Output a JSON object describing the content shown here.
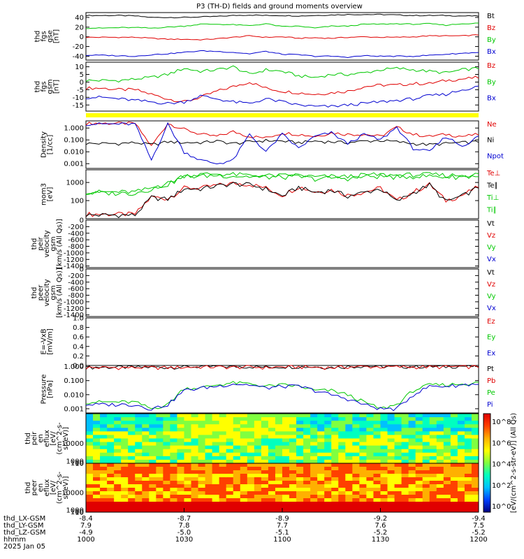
{
  "title": "P3 (TH-D) fields and ground moments overview",
  "colors": {
    "black": "#000000",
    "red": "#e00000",
    "green": "#00c800",
    "blue": "#0000d0",
    "yellow": "#ffff00"
  },
  "chart_data": [
    {
      "type": "line",
      "ylabel": [
        "thd",
        "fgs",
        "gse",
        "[nT]"
      ],
      "yticks": [
        "40",
        "20",
        "0",
        "-20",
        "-40"
      ],
      "ylim": [
        -48,
        50
      ],
      "series": [
        {
          "name": "Bt",
          "color": "red_black",
          "values": [
            44,
            44,
            44,
            43,
            40,
            40,
            40,
            41,
            42,
            44,
            45,
            44,
            44,
            43,
            44,
            45,
            46,
            46,
            46,
            45,
            44,
            44,
            44,
            43,
            43
          ]
        },
        {
          "name": "Bz",
          "values": [
            -1,
            -1,
            -1,
            -1,
            -3,
            -5,
            -5,
            -6,
            -4,
            -1,
            2,
            -1,
            0,
            -3,
            -2,
            -3,
            -1,
            0,
            -1,
            -1,
            0,
            2,
            2,
            2,
            4
          ]
        },
        {
          "name": "By",
          "values": [
            18,
            18,
            19,
            19,
            18,
            20,
            22,
            26,
            26,
            25,
            23,
            27,
            21,
            22,
            18,
            22,
            22,
            26,
            26,
            27,
            26,
            27,
            24,
            27,
            28
          ]
        },
        {
          "name": "Bx",
          "values": [
            -38,
            -38,
            -39,
            -40,
            -37,
            -35,
            -32,
            -29,
            -30,
            -32,
            -35,
            -30,
            -36,
            -37,
            -40,
            -40,
            -42,
            -39,
            -40,
            -40,
            -40,
            -38,
            -36,
            -34,
            -32
          ]
        }
      ]
    },
    {
      "type": "line",
      "ylabel": [
        "thd",
        "fgs",
        "gsm",
        "[nT]"
      ],
      "yticks": [
        "10",
        "5",
        "0",
        "-5",
        "-10",
        "-15"
      ],
      "ylim": [
        -19,
        13
      ],
      "series": [
        {
          "name": "Bz",
          "values": [
            -4,
            -4,
            -5,
            -5,
            -8,
            -11,
            -13,
            -10,
            -6,
            -3,
            0,
            -4,
            -6,
            -7,
            -8,
            -7,
            -6,
            -3,
            -2,
            -2,
            -1,
            -1,
            1,
            2,
            3
          ]
        },
        {
          "name": "By",
          "values": [
            1,
            1,
            1,
            2,
            3,
            5,
            9,
            7,
            8,
            10,
            5,
            8,
            7,
            4,
            3,
            5,
            5,
            6,
            8,
            9,
            8,
            7,
            6,
            8,
            9
          ]
        },
        {
          "name": "Bx",
          "values": [
            -10,
            -10,
            -11,
            -12,
            -13,
            -14,
            -13,
            -9,
            -11,
            -13,
            -14,
            -11,
            -13,
            -15,
            -16,
            -16,
            -15,
            -14,
            -13,
            -12,
            -11,
            -9,
            -8,
            -5,
            -3
          ]
        }
      ]
    },
    {
      "type": "line",
      "ylabel": [
        "Density",
        "[1/cc]"
      ],
      "yticks": [
        "1.000",
        "0.100",
        "0.010",
        "0.001"
      ],
      "log": true,
      "ylim": [
        0.0004,
        4
      ],
      "series": [
        {
          "name": "Ne",
          "values": [
            2.5,
            2.5,
            2.5,
            2.5,
            0.03,
            2.5,
            0.8,
            0.3,
            0.2,
            0.5,
            0.2,
            0.15,
            0.4,
            0.3,
            0.2,
            0.4,
            0.3,
            0.3,
            0.2,
            1.2,
            0.3,
            0.2,
            0.3,
            0.2,
            0.3
          ]
        },
        {
          "name": "Ni",
          "values": [
            0.05,
            0.05,
            0.05,
            0.06,
            0.04,
            0.07,
            0.06,
            0.06,
            0.08,
            0.05,
            0.07,
            0.09,
            0.08,
            0.06,
            0.08,
            0.07,
            0.06,
            0.08,
            0.09,
            0.07,
            0.05,
            0.04,
            0.05,
            0.06,
            0.07
          ]
        },
        {
          "name": "Npot",
          "values": [
            2.2,
            2.2,
            2.2,
            2.2,
            0.002,
            2.2,
            0.01,
            0.002,
            0.001,
            0.002,
            0.3,
            0.01,
            0.3,
            0.02,
            0.2,
            0.4,
            0.05,
            0.3,
            0.1,
            1.2,
            0.02,
            0.01,
            0.2,
            0.03,
            0.2
          ]
        }
      ]
    },
    {
      "type": "line",
      "ylabel": [
        "mom3",
        "[eV]"
      ],
      "yticks": [
        "1000",
        "100"
      ],
      "log": true,
      "ylim": [
        10,
        5000
      ],
      "series": [
        {
          "name": "Te⊥",
          "values": [
            18,
            18,
            18,
            18,
            160,
            130,
            500,
            500,
            700,
            900,
            800,
            500,
            200,
            600,
            300,
            400,
            200,
            300,
            500,
            100,
            300,
            800,
            100,
            200,
            600
          ]
        },
        {
          "name": "Te∥",
          "values": [
            16,
            16,
            16,
            16,
            150,
            120,
            450,
            450,
            650,
            850,
            750,
            450,
            180,
            550,
            280,
            380,
            180,
            280,
            450,
            90,
            280,
            750,
            90,
            180,
            550
          ]
        },
        {
          "name": "Ti⊥",
          "values": [
            300,
            300,
            300,
            300,
            500,
            900,
            2500,
            2800,
            3000,
            2800,
            2500,
            2400,
            2400,
            2600,
            2000,
            2200,
            2100,
            2600,
            2700,
            2500,
            2700,
            2800,
            2500,
            2600,
            2800
          ]
        },
        {
          "name": "Ti∥",
          "values": [
            260,
            260,
            260,
            260,
            450,
            800,
            2100,
            2300,
            2500,
            2300,
            2100,
            2000,
            2000,
            2100,
            1600,
            1800,
            1700,
            2100,
            2200,
            2000,
            2200,
            2300,
            2000,
            2100,
            2300
          ]
        }
      ]
    },
    {
      "type": "line",
      "ylabel": [
        "thd",
        "peir",
        "velocity",
        "gsm",
        "[km/s (All Qs)]"
      ],
      "yticks": [
        "0",
        "-200",
        "-400",
        "-600",
        "-800",
        "-1000",
        "-1200",
        "-1400"
      ],
      "ylim": [
        -1450,
        0
      ],
      "legend": [
        "Vt",
        "Vz",
        "Vy",
        "Vx"
      ],
      "series": []
    },
    {
      "type": "line",
      "ylabel": [
        "thd",
        "peer",
        "velocity",
        "gsm",
        "[km/s (All Qs)]"
      ],
      "yticks": [
        "0",
        "-200",
        "-400",
        "-600",
        "-800",
        "-1000",
        "-1200",
        "-1400"
      ],
      "ylim": [
        -1450,
        0
      ],
      "legend": [
        "Vt",
        "Vz",
        "Vy",
        "Vx"
      ],
      "series": []
    },
    {
      "type": "line",
      "ylabel": [
        "E=-VxB",
        "[mV/m]"
      ],
      "yticks": [
        "1.0",
        "0.8",
        "0.6",
        "0.4",
        "0.2",
        "0.0"
      ],
      "ylim": [
        0,
        1
      ],
      "legend": [
        "Ez",
        "Ey",
        "Ex"
      ],
      "series": []
    },
    {
      "type": "line",
      "ylabel": [
        "Pressure",
        "[nPa]"
      ],
      "yticks": [
        "1.000",
        "0.100",
        "0.010",
        "0.001"
      ],
      "log": true,
      "ylim": [
        0.0005,
        1.2
      ],
      "series": [
        {
          "name": "Pt",
          "values": [
            0.9,
            0.9,
            0.9,
            0.9,
            0.9,
            0.9,
            0.95,
            1.0,
            1.0,
            1.0,
            1.0,
            0.9,
            1.0,
            1.0,
            0.95,
            0.9,
            1.0,
            1.1,
            1.0,
            1.0,
            1.0,
            1.0,
            1.0,
            1.1,
            1.0
          ]
        },
        {
          "name": "Pb",
          "values": [
            0.85,
            0.85,
            0.85,
            0.85,
            0.85,
            0.85,
            0.9,
            0.95,
            0.95,
            0.9,
            0.95,
            0.85,
            0.95,
            0.95,
            0.9,
            0.85,
            0.95,
            1.0,
            0.95,
            0.95,
            0.95,
            0.95,
            0.95,
            1.0,
            0.95
          ]
        },
        {
          "name": "Pe",
          "values": [
            0.003,
            0.003,
            0.003,
            0.003,
            0.001,
            0.002,
            0.03,
            0.03,
            0.05,
            0.07,
            0.06,
            0.04,
            0.05,
            0.04,
            0.02,
            0.02,
            0.01,
            0.003,
            0.001,
            0.002,
            0.02,
            0.05,
            0.05,
            0.06,
            0.07
          ]
        },
        {
          "name": "Pi",
          "values": [
            0.002,
            0.002,
            0.002,
            0.002,
            0.001,
            0.002,
            0.02,
            0.03,
            0.04,
            0.06,
            0.05,
            0.03,
            0.04,
            0.04,
            0.02,
            0.01,
            0.005,
            0.002,
            0.001,
            0.001,
            0.01,
            0.04,
            0.04,
            0.05,
            0.06
          ]
        }
      ]
    },
    {
      "type": "heatmap",
      "ylabel": [
        "thd",
        "peir",
        "en",
        "eflux",
        "[eV/",
        "(cm^2-s-",
        "sr-eV)]"
      ],
      "yticks": [
        "10000",
        "1000",
        "100",
        "10"
      ],
      "ylim": [
        5,
        25000
      ]
    },
    {
      "type": "heatmap",
      "ylabel": [
        "thd",
        "peer",
        "en",
        "eflux",
        "[eV/",
        "(cm^2-s-",
        "sr-eV)]"
      ],
      "yticks": [
        "10000",
        "1000",
        "100",
        "10"
      ],
      "ylim": [
        5,
        25000
      ]
    }
  ],
  "colorbar": {
    "label": "[eV/(cm^2-s-str-eV)] (All Qs)",
    "ticks": [
      "10^8",
      "10^6",
      "10^4",
      "10^2",
      "10^0"
    ]
  },
  "xaxis": {
    "ticks": [
      {
        "LX": "-8.4",
        "LY": "7.9",
        "LZ": "-4.9",
        "hhmm": "1000"
      },
      {
        "LX": "-8.7",
        "LY": "7.8",
        "LZ": "-5.0",
        "hhmm": "1030"
      },
      {
        "LX": "-8.9",
        "LY": "7.7",
        "LZ": "-5.1",
        "hhmm": "1100"
      },
      {
        "LX": "-9.2",
        "LY": "7.6",
        "LZ": "-5.2",
        "hhmm": "1130"
      },
      {
        "LX": "-9.4",
        "LY": "7.5",
        "LZ": "-5.2",
        "hhmm": "1200"
      }
    ],
    "rowlabels": [
      "thd_LX-GSM",
      "thd_LY-GSM",
      "thd_LZ-GSM",
      "hhmm"
    ],
    "date": "2025 Jan 05"
  }
}
